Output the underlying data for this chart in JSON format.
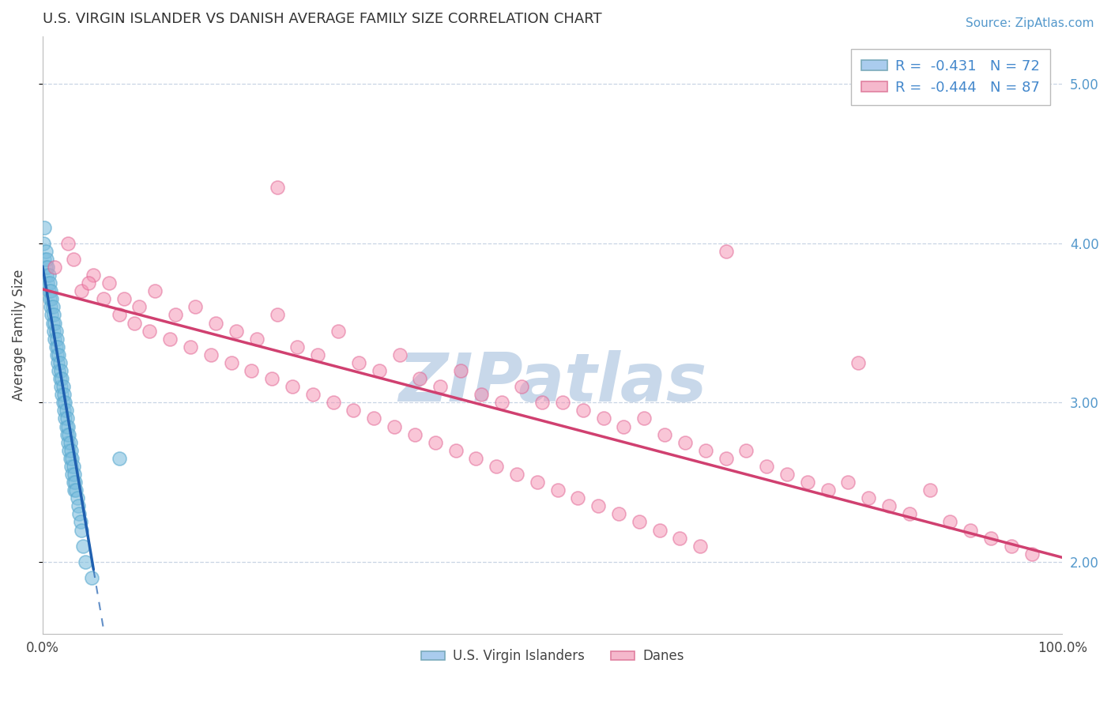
{
  "title": "U.S. VIRGIN ISLANDER VS DANISH AVERAGE FAMILY SIZE CORRELATION CHART",
  "source": "Source: ZipAtlas.com",
  "ylabel": "Average Family Size",
  "xlim": [
    0.0,
    100.0
  ],
  "ylim": [
    1.55,
    5.3
  ],
  "blue_R": "-0.431",
  "blue_N": "72",
  "pink_R": "-0.444",
  "pink_N": "87",
  "blue_color": "#7fbfdf",
  "pink_color": "#f48fb1",
  "blue_edge": "#5aaacf",
  "pink_edge": "#e06090",
  "watermark": "ZIPatlas",
  "watermark_color": "#c8d8ea",
  "legend_label_blue": "U.S. Virgin Islanders",
  "legend_label_pink": "Danes",
  "background_color": "#ffffff",
  "grid_color": "#c8d4e4",
  "blue_trend_color": "#2060b0",
  "pink_trend_color": "#d04070",
  "blue_scatter_x": [
    0.1,
    0.2,
    0.2,
    0.3,
    0.3,
    0.4,
    0.4,
    0.5,
    0.5,
    0.6,
    0.6,
    0.7,
    0.7,
    0.8,
    0.8,
    0.9,
    0.9,
    1.0,
    1.0,
    1.1,
    1.1,
    1.2,
    1.2,
    1.3,
    1.3,
    1.4,
    1.4,
    1.5,
    1.5,
    1.6,
    1.6,
    1.7,
    1.7,
    1.8,
    1.8,
    1.9,
    1.9,
    2.0,
    2.0,
    2.1,
    2.1,
    2.2,
    2.2,
    2.3,
    2.3,
    2.4,
    2.4,
    2.5,
    2.5,
    2.6,
    2.6,
    2.7,
    2.7,
    2.8,
    2.8,
    2.9,
    2.9,
    3.0,
    3.0,
    3.1,
    3.1,
    3.2,
    3.3,
    3.4,
    3.5,
    3.6,
    3.7,
    3.8,
    4.0,
    4.2,
    4.8,
    7.5
  ],
  "blue_scatter_y": [
    4.0,
    3.9,
    4.1,
    3.85,
    3.95,
    3.8,
    3.9,
    3.75,
    3.85,
    3.7,
    3.8,
    3.65,
    3.75,
    3.6,
    3.7,
    3.55,
    3.65,
    3.5,
    3.6,
    3.45,
    3.55,
    3.4,
    3.5,
    3.35,
    3.45,
    3.3,
    3.4,
    3.25,
    3.35,
    3.2,
    3.3,
    3.15,
    3.25,
    3.1,
    3.2,
    3.05,
    3.15,
    3.0,
    3.1,
    2.95,
    3.05,
    2.9,
    3.0,
    2.85,
    2.95,
    2.8,
    2.9,
    2.75,
    2.85,
    2.7,
    2.8,
    2.65,
    2.75,
    2.6,
    2.7,
    2.55,
    2.65,
    2.5,
    2.6,
    2.45,
    2.55,
    2.5,
    2.45,
    2.4,
    2.35,
    2.3,
    2.25,
    2.2,
    2.1,
    2.0,
    1.9,
    2.65
  ],
  "pink_scatter_x": [
    1.2,
    2.5,
    3.8,
    5.0,
    6.5,
    8.0,
    9.5,
    11.0,
    13.0,
    15.0,
    17.0,
    19.0,
    21.0,
    23.0,
    25.0,
    27.0,
    29.0,
    31.0,
    33.0,
    35.0,
    37.0,
    39.0,
    41.0,
    43.0,
    45.0,
    47.0,
    49.0,
    51.0,
    53.0,
    55.0,
    57.0,
    59.0,
    61.0,
    63.0,
    65.0,
    67.0,
    69.0,
    71.0,
    73.0,
    75.0,
    77.0,
    79.0,
    81.0,
    83.0,
    85.0,
    87.0,
    89.0,
    91.0,
    93.0,
    95.0,
    97.0,
    3.0,
    4.5,
    6.0,
    7.5,
    9.0,
    10.5,
    12.5,
    14.5,
    16.5,
    18.5,
    20.5,
    22.5,
    24.5,
    26.5,
    28.5,
    30.5,
    32.5,
    34.5,
    36.5,
    38.5,
    40.5,
    42.5,
    44.5,
    46.5,
    48.5,
    50.5,
    52.5,
    54.5,
    56.5,
    58.5,
    60.5,
    62.5,
    23.0,
    64.5,
    80.0,
    67.0
  ],
  "pink_scatter_y": [
    3.85,
    4.0,
    3.7,
    3.8,
    3.75,
    3.65,
    3.6,
    3.7,
    3.55,
    3.6,
    3.5,
    3.45,
    3.4,
    3.55,
    3.35,
    3.3,
    3.45,
    3.25,
    3.2,
    3.3,
    3.15,
    3.1,
    3.2,
    3.05,
    3.0,
    3.1,
    3.0,
    3.0,
    2.95,
    2.9,
    2.85,
    2.9,
    2.8,
    2.75,
    2.7,
    2.65,
    2.7,
    2.6,
    2.55,
    2.5,
    2.45,
    2.5,
    2.4,
    2.35,
    2.3,
    2.45,
    2.25,
    2.2,
    2.15,
    2.1,
    2.05,
    3.9,
    3.75,
    3.65,
    3.55,
    3.5,
    3.45,
    3.4,
    3.35,
    3.3,
    3.25,
    3.2,
    3.15,
    3.1,
    3.05,
    3.0,
    2.95,
    2.9,
    2.85,
    2.8,
    2.75,
    2.7,
    2.65,
    2.6,
    2.55,
    2.5,
    2.45,
    2.4,
    2.35,
    2.3,
    2.25,
    2.2,
    2.15,
    4.35,
    2.1,
    3.25,
    3.95
  ]
}
